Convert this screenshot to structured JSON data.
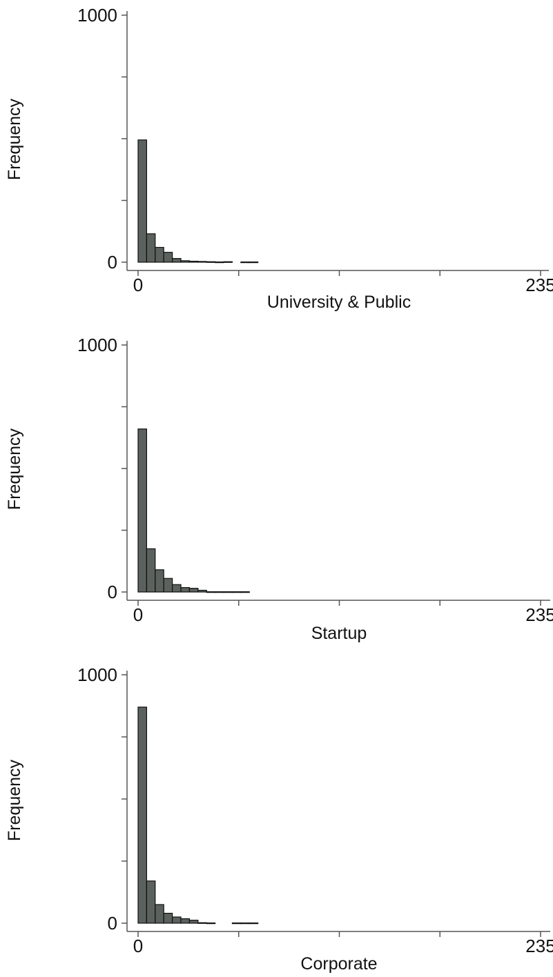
{
  "chart_data": [
    {
      "type": "bar",
      "xlabel": "University & Public",
      "ylabel": "Frequency",
      "xlim": [
        0,
        235
      ],
      "ylim": [
        0,
        1000
      ],
      "xticks": [
        0,
        58.75,
        117.5,
        176.25,
        235
      ],
      "xtick_labels": [
        "0",
        "",
        "",
        "",
        "235"
      ],
      "yticks": [
        0,
        250,
        500,
        750,
        1000
      ],
      "ytick_labels": [
        "0",
        "",
        "",
        "",
        "1000"
      ],
      "bin_width": 5,
      "x": [
        0,
        5,
        10,
        15,
        20,
        25,
        30,
        35,
        40,
        45,
        50,
        55,
        60,
        65
      ],
      "values": [
        495,
        115,
        60,
        40,
        15,
        6,
        4,
        3,
        2,
        1,
        2,
        0,
        1,
        1
      ],
      "grid": false,
      "bar_color": "#5b615d"
    },
    {
      "type": "bar",
      "xlabel": "Startup",
      "ylabel": "Frequency",
      "xlim": [
        0,
        235
      ],
      "ylim": [
        0,
        1000
      ],
      "xticks": [
        0,
        58.75,
        117.5,
        176.25,
        235
      ],
      "xtick_labels": [
        "0",
        "",
        "",
        "",
        "235"
      ],
      "yticks": [
        0,
        250,
        500,
        750,
        1000
      ],
      "ytick_labels": [
        "0",
        "",
        "",
        "",
        "1000"
      ],
      "bin_width": 5,
      "x": [
        0,
        5,
        10,
        15,
        20,
        25,
        30,
        35,
        40,
        45,
        50,
        55,
        60
      ],
      "values": [
        660,
        175,
        90,
        55,
        30,
        18,
        15,
        7,
        1,
        1,
        1,
        1,
        1
      ],
      "grid": false,
      "bar_color": "#5b615d"
    },
    {
      "type": "bar",
      "xlabel": "Corporate",
      "ylabel": "Frequency",
      "xlim": [
        0,
        235
      ],
      "ylim": [
        0,
        1000
      ],
      "xticks": [
        0,
        58.75,
        117.5,
        176.25,
        235
      ],
      "xtick_labels": [
        "0",
        "",
        "",
        "",
        "235"
      ],
      "yticks": [
        0,
        250,
        500,
        750,
        1000
      ],
      "ytick_labels": [
        "0",
        "",
        "",
        "",
        "1000"
      ],
      "bin_width": 5,
      "x": [
        0,
        5,
        10,
        15,
        20,
        25,
        30,
        35,
        40,
        55,
        60,
        65
      ],
      "values": [
        870,
        170,
        75,
        40,
        25,
        18,
        12,
        2,
        1,
        1,
        1,
        1
      ],
      "grid": false,
      "bar_color": "#5b615d"
    }
  ]
}
